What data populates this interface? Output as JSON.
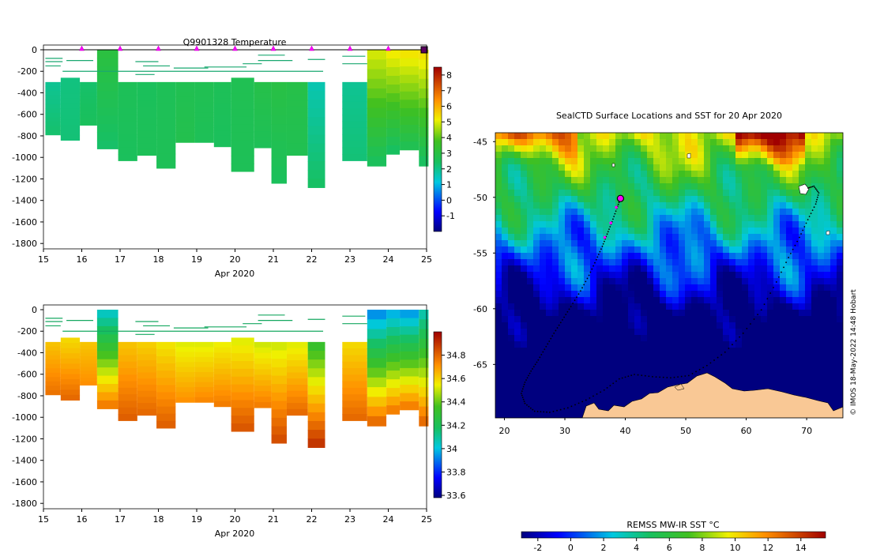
{
  "chart_data": [
    {
      "id": "temperature-section",
      "type": "heatmap",
      "title": "Q9901328  Temperature",
      "xlabel": "Apr 2020",
      "xlim": [
        15,
        25
      ],
      "x_ticks": [
        15,
        16,
        17,
        18,
        19,
        20,
        21,
        22,
        23,
        24,
        25
      ],
      "ylim": [
        -1850,
        0
      ],
      "y_ticks": [
        0,
        -200,
        -400,
        -600,
        -800,
        -1000,
        -1200,
        -1400,
        -1600,
        -1800
      ],
      "colorbar": {
        "min": -2,
        "max": 8.5,
        "ticks": [
          8,
          7,
          6,
          5,
          4,
          3,
          2,
          1,
          0,
          -1
        ]
      },
      "surface_markers_days": [
        16,
        17,
        18,
        19,
        20,
        21,
        22,
        23,
        24
      ],
      "profiles": [
        {
          "x0": 15.05,
          "x1": 15.45,
          "top": -300,
          "bottom": -790,
          "surface": 1.9,
          "deep": 2.3
        },
        {
          "x0": 15.45,
          "x1": 15.95,
          "top": -260,
          "bottom": -840,
          "surface": 2.1,
          "deep": 2.2
        },
        {
          "x0": 15.95,
          "x1": 16.4,
          "top": -300,
          "bottom": -700,
          "surface": 2.3,
          "deep": 2.5
        },
        {
          "x0": 16.4,
          "x1": 16.95,
          "top": 0,
          "bottom": -920,
          "surface": 3.1,
          "deep": 2.3
        },
        {
          "x0": 16.95,
          "x1": 17.45,
          "top": -300,
          "bottom": -1030,
          "surface": 2.6,
          "deep": 2.5
        },
        {
          "x0": 17.45,
          "x1": 17.95,
          "top": -300,
          "bottom": -980,
          "surface": 2.5,
          "deep": 2.6
        },
        {
          "x0": 17.95,
          "x1": 18.45,
          "top": -300,
          "bottom": -1100,
          "surface": 2.6,
          "deep": 2.6
        },
        {
          "x0": 18.45,
          "x1": 18.95,
          "top": -300,
          "bottom": -860,
          "surface": 2.7,
          "deep": 2.8
        },
        {
          "x0": 18.95,
          "x1": 19.45,
          "top": -300,
          "bottom": -860,
          "surface": 2.7,
          "deep": 2.6
        },
        {
          "x0": 19.45,
          "x1": 19.9,
          "top": -300,
          "bottom": -900,
          "surface": 2.6,
          "deep": 2.5
        },
        {
          "x0": 19.9,
          "x1": 20.5,
          "top": -260,
          "bottom": -1130,
          "surface": 2.7,
          "deep": 2.6
        },
        {
          "x0": 20.5,
          "x1": 20.95,
          "top": -300,
          "bottom": -910,
          "surface": 2.9,
          "deep": 2.6
        },
        {
          "x0": 20.95,
          "x1": 21.35,
          "top": -300,
          "bottom": -1240,
          "surface": 3.0,
          "deep": 2.5
        },
        {
          "x0": 21.35,
          "x1": 21.9,
          "top": -300,
          "bottom": -980,
          "surface": 2.9,
          "deep": 2.7
        },
        {
          "x0": 21.9,
          "x1": 22.35,
          "top": -300,
          "bottom": -1280,
          "surface": 1.6,
          "deep": 2.4
        },
        {
          "x0": 22.8,
          "x1": 23.45,
          "top": -300,
          "bottom": -1030,
          "surface": 1.9,
          "deep": 2.2
        },
        {
          "x0": 23.45,
          "x1": 23.95,
          "top": 0,
          "bottom": -1080,
          "surface": 5.0,
          "deep": 2.4
        },
        {
          "x0": 23.95,
          "x1": 24.3,
          "top": 0,
          "bottom": -970,
          "surface": 5.3,
          "deep": 2.3
        },
        {
          "x0": 24.3,
          "x1": 24.8,
          "top": 0,
          "bottom": -930,
          "surface": 5.4,
          "deep": 2.6
        },
        {
          "x0": 24.8,
          "x1": 25.05,
          "top": 0,
          "bottom": -1080,
          "surface": 5.5,
          "deep": 2.3
        }
      ]
    },
    {
      "id": "salinity-section",
      "type": "heatmap",
      "title": "",
      "xlabel": "Apr 2020",
      "xlim": [
        15,
        25
      ],
      "x_ticks": [
        15,
        16,
        17,
        18,
        19,
        20,
        21,
        22,
        23,
        24,
        25
      ],
      "ylim": [
        -1850,
        0
      ],
      "y_ticks": [
        0,
        -200,
        -400,
        -600,
        -800,
        -1000,
        -1200,
        -1400,
        -1600,
        -1800
      ],
      "colorbar": {
        "min": 33.58,
        "max": 35.0,
        "ticks": [
          "34.8",
          "34.6",
          "34.4",
          "34.2",
          "34",
          "33.8",
          "33.6"
        ]
      },
      "profiles": [
        {
          "x0": 15.05,
          "x1": 15.45,
          "top": -300,
          "bottom": -790,
          "surface": 34.62,
          "deep": 34.78
        },
        {
          "x0": 15.45,
          "x1": 15.95,
          "top": -260,
          "bottom": -840,
          "surface": 34.58,
          "deep": 34.8
        },
        {
          "x0": 15.95,
          "x1": 16.4,
          "top": -300,
          "bottom": -700,
          "surface": 34.62,
          "deep": 34.72
        },
        {
          "x0": 16.4,
          "x1": 16.95,
          "top": 0,
          "bottom": -920,
          "surface": 34.02,
          "deep": 34.78
        },
        {
          "x0": 16.95,
          "x1": 17.45,
          "top": -300,
          "bottom": -1030,
          "surface": 34.62,
          "deep": 34.82
        },
        {
          "x0": 17.45,
          "x1": 17.95,
          "top": -300,
          "bottom": -980,
          "surface": 34.6,
          "deep": 34.8
        },
        {
          "x0": 17.95,
          "x1": 18.45,
          "top": -300,
          "bottom": -1100,
          "surface": 34.56,
          "deep": 34.82
        },
        {
          "x0": 18.45,
          "x1": 18.95,
          "top": -300,
          "bottom": -860,
          "surface": 34.52,
          "deep": 34.72
        },
        {
          "x0": 18.95,
          "x1": 19.45,
          "top": -300,
          "bottom": -860,
          "surface": 34.52,
          "deep": 34.74
        },
        {
          "x0": 19.45,
          "x1": 19.9,
          "top": -300,
          "bottom": -900,
          "surface": 34.54,
          "deep": 34.76
        },
        {
          "x0": 19.9,
          "x1": 20.5,
          "top": -260,
          "bottom": -1130,
          "surface": 34.52,
          "deep": 34.84
        },
        {
          "x0": 20.5,
          "x1": 20.95,
          "top": -300,
          "bottom": -910,
          "surface": 34.5,
          "deep": 34.76
        },
        {
          "x0": 20.95,
          "x1": 21.35,
          "top": -300,
          "bottom": -1240,
          "surface": 34.5,
          "deep": 34.86
        },
        {
          "x0": 21.35,
          "x1": 21.9,
          "top": -300,
          "bottom": -980,
          "surface": 34.52,
          "deep": 34.8
        },
        {
          "x0": 21.9,
          "x1": 22.35,
          "top": -300,
          "bottom": -1280,
          "surface": 34.3,
          "deep": 34.92
        },
        {
          "x0": 22.8,
          "x1": 23.45,
          "top": -300,
          "bottom": -1030,
          "surface": 34.58,
          "deep": 34.8
        },
        {
          "x0": 23.45,
          "x1": 23.95,
          "top": 0,
          "bottom": -1080,
          "surface": 33.9,
          "deep": 34.82
        },
        {
          "x0": 23.95,
          "x1": 24.3,
          "top": 0,
          "bottom": -970,
          "surface": 33.95,
          "deep": 34.78
        },
        {
          "x0": 24.3,
          "x1": 24.8,
          "top": 0,
          "bottom": -930,
          "surface": 33.92,
          "deep": 34.78
        },
        {
          "x0": 24.8,
          "x1": 25.05,
          "top": 0,
          "bottom": -1080,
          "surface": 34.05,
          "deep": 34.82
        }
      ]
    },
    {
      "id": "sst-map",
      "type": "heatmap",
      "title": "SealCTD Surface Locations and SST for 20 Apr 2020",
      "xlim": [
        18.5,
        76
      ],
      "ylim": [
        -69.8,
        -44.2
      ],
      "x_ticks": [
        20,
        30,
        40,
        50,
        60,
        70
      ],
      "y_ticks": [
        -45,
        -50,
        -55,
        -60,
        -65
      ],
      "colorbar": {
        "label": "REMSS MW-IR SST °C",
        "min": -3,
        "max": 15.5,
        "ticks": [
          -2,
          0,
          2,
          4,
          6,
          8,
          10,
          12,
          14
        ]
      },
      "track_west": [
        [
          39.2,
          -50.1
        ],
        [
          38.6,
          -51.0
        ],
        [
          37.8,
          -52.2
        ],
        [
          37.0,
          -53.3
        ],
        [
          36.2,
          -54.4
        ],
        [
          35.2,
          -55.6
        ],
        [
          34.0,
          -57.0
        ],
        [
          32.6,
          -58.4
        ],
        [
          31.0,
          -59.8
        ],
        [
          29.6,
          -61.0
        ],
        [
          28.2,
          -62.2
        ],
        [
          26.9,
          -63.4
        ],
        [
          25.6,
          -64.6
        ],
        [
          24.4,
          -65.6
        ],
        [
          23.4,
          -66.6
        ],
        [
          22.8,
          -67.6
        ],
        [
          23.4,
          -68.5
        ],
        [
          25.0,
          -69.2
        ],
        [
          27.5,
          -69.3
        ],
        [
          30.5,
          -68.9
        ],
        [
          33.5,
          -68.2
        ],
        [
          36.5,
          -67.3
        ],
        [
          39.0,
          -66.3
        ],
        [
          41.5,
          -65.9
        ],
        [
          44.5,
          -66.1
        ],
        [
          47.5,
          -66.2
        ],
        [
          50.5,
          -66.0
        ],
        [
          53.5,
          -65.1
        ],
        [
          56.5,
          -63.9
        ],
        [
          59.5,
          -62.2
        ],
        [
          62.5,
          -60.1
        ],
        [
          65.0,
          -57.6
        ],
        [
          67.0,
          -55.4
        ],
        [
          68.8,
          -53.6
        ],
        [
          70.2,
          -52.0
        ],
        [
          71.5,
          -50.6
        ],
        [
          72.0,
          -49.6
        ],
        [
          71.2,
          -49.0
        ],
        [
          70.0,
          -49.2
        ]
      ],
      "recent_track": [
        [
          39.2,
          -50.1
        ],
        [
          38.5,
          -50.9
        ],
        [
          37.6,
          -52.3
        ],
        [
          36.6,
          -53.6
        ]
      ],
      "current_position": [
        39.2,
        -50.1
      ],
      "credit": "© IMOS 18-May-2022 14:48 Hobart"
    }
  ]
}
